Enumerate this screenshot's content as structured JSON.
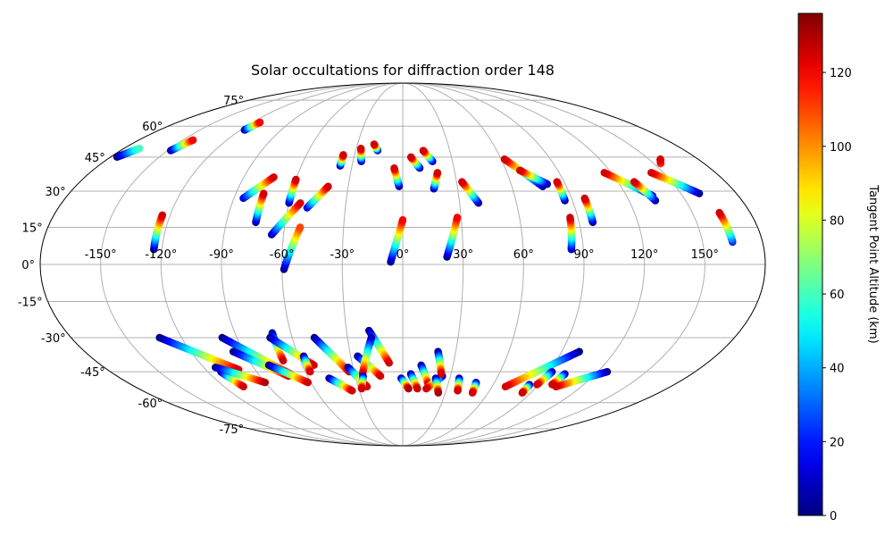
{
  "chart_data": {
    "type": "scatter",
    "projection": "mollweide",
    "title": "Solar occultations for diffraction order 148",
    "xlabel": "",
    "ylabel": "",
    "xlim": [
      -180,
      180
    ],
    "ylim": [
      -90,
      90
    ],
    "grid": true,
    "lon_ticks": [
      -150,
      -120,
      -90,
      -60,
      -30,
      0,
      30,
      60,
      90,
      120,
      150
    ],
    "lon_tick_labels": [
      "-150°",
      "-120°",
      "-90°",
      "-60°",
      "-30°",
      "0°",
      "30°",
      "60°",
      "90°",
      "120°",
      "150°"
    ],
    "lat_ticks": [
      -75,
      -60,
      -45,
      -30,
      -15,
      0,
      15,
      30,
      45,
      60,
      75
    ],
    "lat_tick_labels": [
      "-75°",
      "-60°",
      "-45°",
      "-30°",
      "-15°",
      "0°",
      "15°",
      "30°",
      "45°",
      "60°",
      "75°"
    ],
    "colorbar": {
      "label": "Tangent Point Altitude (km)",
      "colormap": "jet",
      "range": [
        0,
        136
      ],
      "ticks": [
        0,
        20,
        40,
        60,
        80,
        100,
        120
      ],
      "tick_labels": [
        "0",
        "20",
        "40",
        "60",
        "80",
        "100",
        "120"
      ]
    },
    "tracks": [
      {
        "lon0": -176,
        "lat0": 45,
        "lon1": -170,
        "lat1": 49,
        "alt0": 0,
        "alt1": 60
      },
      {
        "lon0": -148,
        "lat0": 48,
        "lon1": -143,
        "lat1": 53,
        "alt0": 0,
        "alt1": 120
      },
      {
        "lon0": -117,
        "lat0": 58,
        "lon1": -114,
        "lat1": 62,
        "alt0": 0,
        "alt1": 120
      },
      {
        "lon0": -85,
        "lat0": 27,
        "lon1": -73,
        "lat1": 36,
        "alt0": 10,
        "alt1": 125
      },
      {
        "lon0": -75,
        "lat0": 17,
        "lon1": -75,
        "lat1": 29,
        "alt0": 0,
        "alt1": 125
      },
      {
        "lon0": -60,
        "lat0": 25,
        "lon1": -60,
        "lat1": 35,
        "alt0": 0,
        "alt1": 125
      },
      {
        "lon0": -66,
        "lat0": 12,
        "lon1": -54,
        "lat1": 25,
        "alt0": 5,
        "alt1": 125
      },
      {
        "lon0": -59,
        "lat0": -2,
        "lon1": -52,
        "lat1": 15,
        "alt0": 0,
        "alt1": 110
      },
      {
        "lon0": -50,
        "lat0": 23,
        "lon1": -41,
        "lat1": 32,
        "alt0": 10,
        "alt1": 125
      },
      {
        "lon0": -37,
        "lat0": 41,
        "lon1": -37,
        "lat1": 46,
        "alt0": 0,
        "alt1": 125
      },
      {
        "lon0": -25,
        "lat0": 43,
        "lon1": -27,
        "lat1": 49,
        "alt0": 0,
        "alt1": 125
      },
      {
        "lon0": -16,
        "lat0": 48,
        "lon1": -19,
        "lat1": 51,
        "alt0": 0,
        "alt1": 125
      },
      {
        "lon0": -2,
        "lat0": 32,
        "lon1": -5,
        "lat1": 40,
        "alt0": 0,
        "alt1": 125
      },
      {
        "lon0": -6,
        "lat0": 1,
        "lon1": 0,
        "lat1": 18,
        "alt0": 0,
        "alt1": 120
      },
      {
        "lon0": 10,
        "lat0": 40,
        "lon1": 5,
        "lat1": 45,
        "alt0": 0,
        "alt1": 125
      },
      {
        "lon0": 18,
        "lat0": 43,
        "lon1": 13,
        "lat1": 48,
        "alt0": 0,
        "alt1": 125
      },
      {
        "lon0": 17,
        "lat0": 31,
        "lon1": 20,
        "lat1": 38,
        "alt0": 0,
        "alt1": 125
      },
      {
        "lon0": 22,
        "lat0": 3,
        "lon1": 28,
        "lat1": 19,
        "alt0": 0,
        "alt1": 120
      },
      {
        "lon0": 40,
        "lat0": 25,
        "lon1": 33,
        "lat1": 34,
        "alt0": 0,
        "alt1": 125
      },
      {
        "lon0": 77,
        "lat0": 32,
        "lon1": 62,
        "lat1": 44,
        "alt0": 0,
        "alt1": 125
      },
      {
        "lon0": 80,
        "lat0": 33,
        "lon1": 68,
        "lat1": 39,
        "alt0": 0,
        "alt1": 125
      },
      {
        "lon0": 86,
        "lat0": 26,
        "lon1": 86,
        "lat1": 34,
        "alt0": 0,
        "alt1": 125
      },
      {
        "lon0": 84,
        "lat0": 6,
        "lon1": 86,
        "lat1": 19,
        "alt0": 5,
        "alt1": 125
      },
      {
        "lon0": 97,
        "lat0": 17,
        "lon1": 97,
        "lat1": 27,
        "alt0": 0,
        "alt1": 125
      },
      {
        "lon0": 134,
        "lat0": 28,
        "lon1": 116,
        "lat1": 38,
        "alt0": 0,
        "alt1": 125
      },
      {
        "lon0": 134,
        "lat0": 26,
        "lon1": 129,
        "lat1": 34,
        "alt0": 0,
        "alt1": 125
      },
      {
        "lon0": 160,
        "lat0": 29,
        "lon1": 143,
        "lat1": 38,
        "alt0": 0,
        "alt1": 125
      },
      {
        "lon0": 154,
        "lat0": 42,
        "lon1": 157,
        "lat1": 44,
        "alt0": 110,
        "alt1": 125
      },
      {
        "lon0": 165,
        "lat0": 9,
        "lon1": 164,
        "lat1": 21,
        "alt0": 20,
        "alt1": 125
      },
      {
        "lon0": -124,
        "lat0": 6,
        "lon1": -124,
        "lat1": 20,
        "alt0": 0,
        "alt1": 125
      },
      {
        "lon0": -132,
        "lat0": -30,
        "lon1": -100,
        "lat1": -44,
        "alt0": 0,
        "alt1": 125
      },
      {
        "lon0": -112,
        "lat0": -45,
        "lon1": -107,
        "lat1": -52,
        "alt0": 0,
        "alt1": 125
      },
      {
        "lon0": -113,
        "lat0": -43,
        "lon1": -90,
        "lat1": -50,
        "alt0": 0,
        "alt1": 130
      },
      {
        "lon0": -98,
        "lat0": -30,
        "lon1": -70,
        "lat1": -46,
        "alt0": 0,
        "alt1": 125
      },
      {
        "lon0": -96,
        "lat0": -36,
        "lon1": -72,
        "lat1": -47,
        "alt0": 0,
        "alt1": 125
      },
      {
        "lon0": -80,
        "lat0": -42,
        "lon1": -62,
        "lat1": -50,
        "alt0": 0,
        "alt1": 125
      },
      {
        "lon0": -70,
        "lat0": -28,
        "lon1": -70,
        "lat1": -40,
        "alt0": 0,
        "alt1": 125
      },
      {
        "lon0": -72,
        "lat0": -30,
        "lon1": -53,
        "lat1": -42,
        "alt0": 0,
        "alt1": 125
      },
      {
        "lon0": -57,
        "lat0": -38,
        "lon1": -57,
        "lat1": -45,
        "alt0": 0,
        "alt1": 125
      },
      {
        "lon0": -48,
        "lat0": -30,
        "lon1": -33,
        "lat1": -45,
        "alt0": 0,
        "alt1": 125
      },
      {
        "lon0": -47,
        "lat0": -48,
        "lon1": -35,
        "lat1": -54,
        "alt0": 0,
        "alt1": 125
      },
      {
        "lon0": -33,
        "lat0": -43,
        "lon1": -24,
        "lat1": -52,
        "alt0": 0,
        "alt1": 125
      },
      {
        "lon0": -26,
        "lat0": -38,
        "lon1": -14,
        "lat1": -47,
        "alt0": 0,
        "alt1": 125
      },
      {
        "lon0": -18,
        "lat0": -27,
        "lon1": -8,
        "lat1": -41,
        "alt0": 0,
        "alt1": 125
      },
      {
        "lon0": -17,
        "lat0": -30,
        "lon1": -25,
        "lat1": -46,
        "alt0": 0,
        "alt1": 125
      },
      {
        "lon0": -25,
        "lat0": -47,
        "lon1": -28,
        "lat1": -53,
        "alt0": 0,
        "alt1": 125
      },
      {
        "lon0": -1,
        "lat0": -48,
        "lon1": 4,
        "lat1": -53,
        "alt0": 0,
        "alt1": 130
      },
      {
        "lon0": 5,
        "lat0": -46,
        "lon1": 10,
        "lat1": -53,
        "alt0": 0,
        "alt1": 125
      },
      {
        "lon0": 11,
        "lat0": -42,
        "lon1": 17,
        "lat1": -51,
        "alt0": 0,
        "alt1": 125
      },
      {
        "lon0": 25,
        "lat0": -47,
        "lon1": 16,
        "lat1": -53,
        "alt0": 0,
        "alt1": 125
      },
      {
        "lon0": 20,
        "lat0": -36,
        "lon1": 24,
        "lat1": -46,
        "alt0": 0,
        "alt1": 125
      },
      {
        "lon0": 21,
        "lat0": -48,
        "lon1": 25,
        "lat1": -55,
        "alt0": 0,
        "alt1": 130
      },
      {
        "lon0": 36,
        "lat0": -48,
        "lon1": 38,
        "lat1": -54,
        "alt0": 0,
        "alt1": 125
      },
      {
        "lon0": 48,
        "lat0": -50,
        "lon1": 49,
        "lat1": -55,
        "alt0": 0,
        "alt1": 125
      },
      {
        "lon0": 100,
        "lat0": -36,
        "lon1": 69,
        "lat1": -52,
        "alt0": 0,
        "alt1": 125
      },
      {
        "lon0": 84,
        "lat0": -51,
        "lon1": 84,
        "lat1": -55,
        "alt0": 0,
        "alt1": 125
      },
      {
        "lon0": 92,
        "lat0": -45,
        "lon1": 89,
        "lat1": -51,
        "alt0": 0,
        "alt1": 125
      },
      {
        "lon0": 101,
        "lat0": -46,
        "lon1": 99,
        "lat1": -51,
        "alt0": 0,
        "alt1": 125
      },
      {
        "lon0": 126,
        "lat0": -45,
        "lon1": 103,
        "lat1": -52,
        "alt0": 0,
        "alt1": 125
      }
    ]
  }
}
